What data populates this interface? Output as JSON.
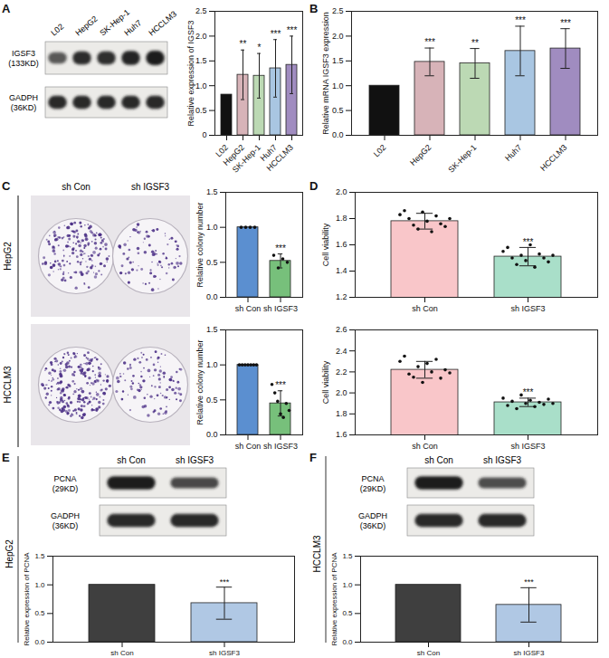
{
  "chart_data": [
    {
      "type": "bar",
      "categories": [
        "L02",
        "HepG2",
        "SK-Hep-1",
        "Huh7",
        "HCCLM3"
      ],
      "values": [
        0.82,
        1.22,
        1.2,
        1.35,
        1.42
      ],
      "errors": [
        0,
        0.5,
        0.45,
        0.58,
        0.58
      ],
      "annotations": [
        null,
        "**",
        "*",
        "***",
        "***"
      ],
      "colors": [
        "#111111",
        "#d7b3b8",
        "#bcd9b4",
        "#a9c6e2",
        "#a08cc0"
      ],
      "ylabel": "Relative expression of IGSF3",
      "ylim": [
        0,
        2.5
      ],
      "yticks": [
        0,
        0.5,
        {
          "value": 1,
          "label": "1.0"
        },
        1.5,
        {
          "value": 2,
          "label": "2.0"
        },
        2.5
      ]
    },
    {
      "type": "bar",
      "categories": [
        "L02",
        "HepG2",
        "SK-Hep-1",
        "Huh7",
        "HCCLM3"
      ],
      "values": [
        1,
        1.48,
        1.45,
        1.7,
        1.75
      ],
      "errors": [
        0,
        0.28,
        0.3,
        0.5,
        0.4
      ],
      "annotations": [
        null,
        "***",
        "**",
        "***",
        "***"
      ],
      "colors": [
        "#111111",
        "#d7b3b8",
        "#bcd9b4",
        "#a9c6e2",
        "#a08cc0"
      ],
      "ylabel": "Relative mRNA IGSF3 expression",
      "ylim": [
        0,
        2.5
      ],
      "yticks": [
        {
          "value": 0,
          "label": "0.0"
        },
        0.5,
        {
          "value": 1,
          "label": "1.0"
        },
        1.5,
        {
          "value": 2,
          "label": "2.0"
        },
        2.5
      ]
    },
    {
      "type": "bar",
      "categories": [
        "sh Con",
        "sh IGSF3"
      ],
      "values": [
        1,
        0.52
      ],
      "errors": [
        0,
        0.1
      ],
      "annotations": [
        null,
        "***"
      ],
      "points": [
        [
          1,
          1,
          1,
          1
        ],
        [
          0.6,
          0.42,
          0.55,
          0.5
        ]
      ],
      "colors": [
        "#5b8fd0",
        "#77c07b"
      ],
      "ylabel": "Relative colony number",
      "ylim": [
        0,
        1.5
      ],
      "yticks": [
        {
          "value": 0,
          "label": "0.0"
        },
        0.5,
        {
          "value": 1,
          "label": "1.0"
        },
        1.5
      ]
    },
    {
      "type": "bar",
      "categories": [
        "sh Con",
        "sh IGSF3"
      ],
      "values": [
        1,
        0.45
      ],
      "errors": [
        0,
        0.18
      ],
      "annotations": [
        null,
        "***"
      ],
      "points": [
        [
          1,
          1,
          1,
          1,
          1,
          1,
          1
        ],
        [
          0.72,
          0.6,
          0.48,
          0.3,
          0.25,
          0.45,
          0.35
        ]
      ],
      "colors": [
        "#5b8fd0",
        "#77c07b"
      ],
      "ylabel": "Relative colony number",
      "ylim": [
        0,
        1.5
      ],
      "yticks": [
        {
          "value": 0,
          "label": "0.0"
        },
        0.5,
        {
          "value": 1,
          "label": "1.0"
        },
        1.5
      ]
    },
    {
      "type": "bar",
      "categories": [
        "sh Con",
        "sh IGSF3"
      ],
      "values": [
        1.78,
        1.51
      ],
      "errors": [
        0.06,
        0.07
      ],
      "annotations": [
        null,
        "***"
      ],
      "points": [
        [
          1.83,
          1.86,
          1.8,
          1.75,
          1.72,
          1.85,
          1.78,
          1.7,
          1.82,
          1.76,
          1.74,
          1.8
        ],
        [
          1.55,
          1.58,
          1.5,
          1.45,
          1.52,
          1.48,
          1.6,
          1.43,
          1.53,
          1.5,
          1.47,
          1.52
        ]
      ],
      "colors": [
        "#f9c6c9",
        "#a9dfc9"
      ],
      "ylabel": "Cell viability",
      "ylim": [
        1.2,
        2.0
      ],
      "yticks": [
        1.2,
        1.4,
        1.6,
        1.8,
        {
          "value": 2,
          "label": "2.0"
        }
      ]
    },
    {
      "type": "bar",
      "categories": [
        "sh Con",
        "sh IGSF3"
      ],
      "values": [
        2.22,
        1.91
      ],
      "errors": [
        0.08,
        0.04
      ],
      "annotations": [
        null,
        "***"
      ],
      "points": [
        [
          2.3,
          2.35,
          2.18,
          2.15,
          2.25,
          2.1,
          2.28,
          2.2,
          2.32,
          2.14,
          2.22,
          2.19
        ],
        [
          1.95,
          1.88,
          1.92,
          1.85,
          1.98,
          1.9,
          1.93,
          1.87,
          1.91,
          1.89,
          1.94,
          1.9
        ]
      ],
      "colors": [
        "#f9c6c9",
        "#a9dfc9"
      ],
      "ylabel": "Cell viability",
      "ylim": [
        1.6,
        2.6
      ],
      "yticks": [
        1.6,
        1.8,
        {
          "value": 2,
          "label": "2.0"
        },
        2.2,
        2.4,
        2.6
      ]
    },
    {
      "type": "bar",
      "categories": [
        "sh Con",
        "sh IGSF3"
      ],
      "values": [
        1,
        0.68
      ],
      "errors": [
        0,
        0.28
      ],
      "annotations": [
        null,
        "***"
      ],
      "colors": [
        "#3f3f3f",
        "#b0c8e4"
      ],
      "ylabel": "Relative expression of PCNA",
      "ylim": [
        0,
        1.5
      ],
      "yticks": [
        {
          "value": 0,
          "label": "0.0"
        },
        0.5,
        {
          "value": 1,
          "label": "1.0"
        },
        1.5
      ]
    },
    {
      "type": "bar",
      "categories": [
        "sh Con",
        "sh IGSF3"
      ],
      "values": [
        1,
        0.65
      ],
      "errors": [
        0,
        0.3
      ],
      "annotations": [
        null,
        "***"
      ],
      "colors": [
        "#3f3f3f",
        "#b0c8e4"
      ],
      "ylabel": "Relative expression of PCNA",
      "ylim": [
        0,
        1.5
      ],
      "yticks": [
        {
          "value": 0,
          "label": "0.0"
        },
        0.5,
        {
          "value": 1,
          "label": "1.0"
        },
        1.5
      ]
    }
  ],
  "figure": {
    "panel_letters": [
      "A",
      "B",
      "C",
      "D",
      "E",
      "F"
    ],
    "blots": [
      {
        "lanes": [
          "L02",
          "HepG2",
          "SK-Hep-1",
          "Huh7",
          "HCCLM3"
        ],
        "rows": [
          {
            "label": "IGSF3",
            "size": "(133KD)"
          },
          {
            "label": "GADPH",
            "size": "(36KD)"
          }
        ]
      },
      {
        "cell_line": "HepG2",
        "lanes": [
          "sh Con",
          "sh IGSF3"
        ],
        "rows": [
          {
            "label": "PCNA",
            "size": "(29KD)"
          },
          {
            "label": "GADPH",
            "size": "(36KD)"
          }
        ]
      },
      {
        "cell_line": "HCCLM3",
        "lanes": [
          "sh Con",
          "sh IGSF3"
        ],
        "rows": [
          {
            "label": "PCNA",
            "size": "(29KD)"
          },
          {
            "label": "GADPH",
            "size": "(36KD)"
          }
        ]
      }
    ],
    "plates": {
      "rows": [
        "HepG2",
        "HCCLM3"
      ],
      "columns": [
        "sh Con",
        "sh IGSF3"
      ]
    }
  }
}
